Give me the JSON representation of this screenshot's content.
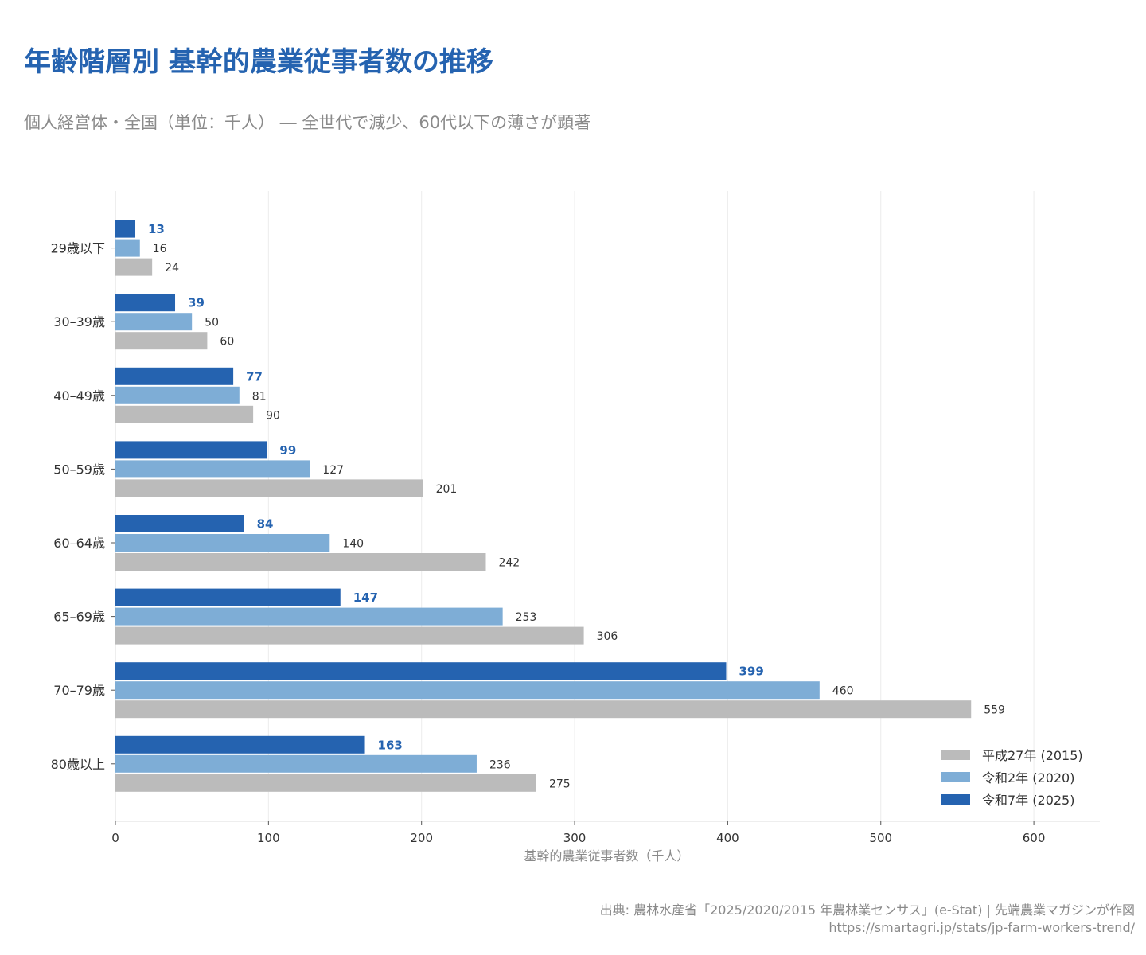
{
  "title": "年齢階層別 基幹的農業従事者数の推移",
  "subtitle": "個人経営体・全国（単位：千人） ― 全世代で減少、60代以下の薄さが顕著",
  "source_line1": "出典: 農林水産省「2025/2020/2015 年農林業センサス」(e-Stat) | 先端農業マガジンが作図",
  "source_line2": "https://smartagri.jp/stats/jp-farm-workers-trend/",
  "chart_data": {
    "type": "bar",
    "orientation": "horizontal",
    "categories": [
      "29歳以下",
      "30–39歳",
      "40–49歳",
      "50–59歳",
      "60–64歳",
      "65–69歳",
      "70–79歳",
      "80歳以上"
    ],
    "series": [
      {
        "name": "令和7年 (2025)",
        "color": "#2563b0",
        "values": [
          13,
          39,
          77,
          99,
          84,
          147,
          399,
          163
        ]
      },
      {
        "name": "令和2年 (2020)",
        "color": "#7eadd6",
        "values": [
          16,
          50,
          81,
          127,
          140,
          253,
          460,
          236
        ]
      },
      {
        "name": "平成27年 (2015)",
        "color": "#bbbbbb",
        "values": [
          24,
          60,
          90,
          201,
          242,
          306,
          559,
          275
        ]
      }
    ],
    "legend_order": [
      "平成27年 (2015)",
      "令和2年 (2020)",
      "令和7年 (2025)"
    ],
    "legend_position": "bottom-right",
    "xlabel": "基幹的農業従事者数（千人）",
    "ylabel": "",
    "xlim": [
      0,
      643
    ],
    "xticks": [
      0,
      100,
      200,
      300,
      400,
      500,
      600
    ],
    "grid": "vertical"
  }
}
